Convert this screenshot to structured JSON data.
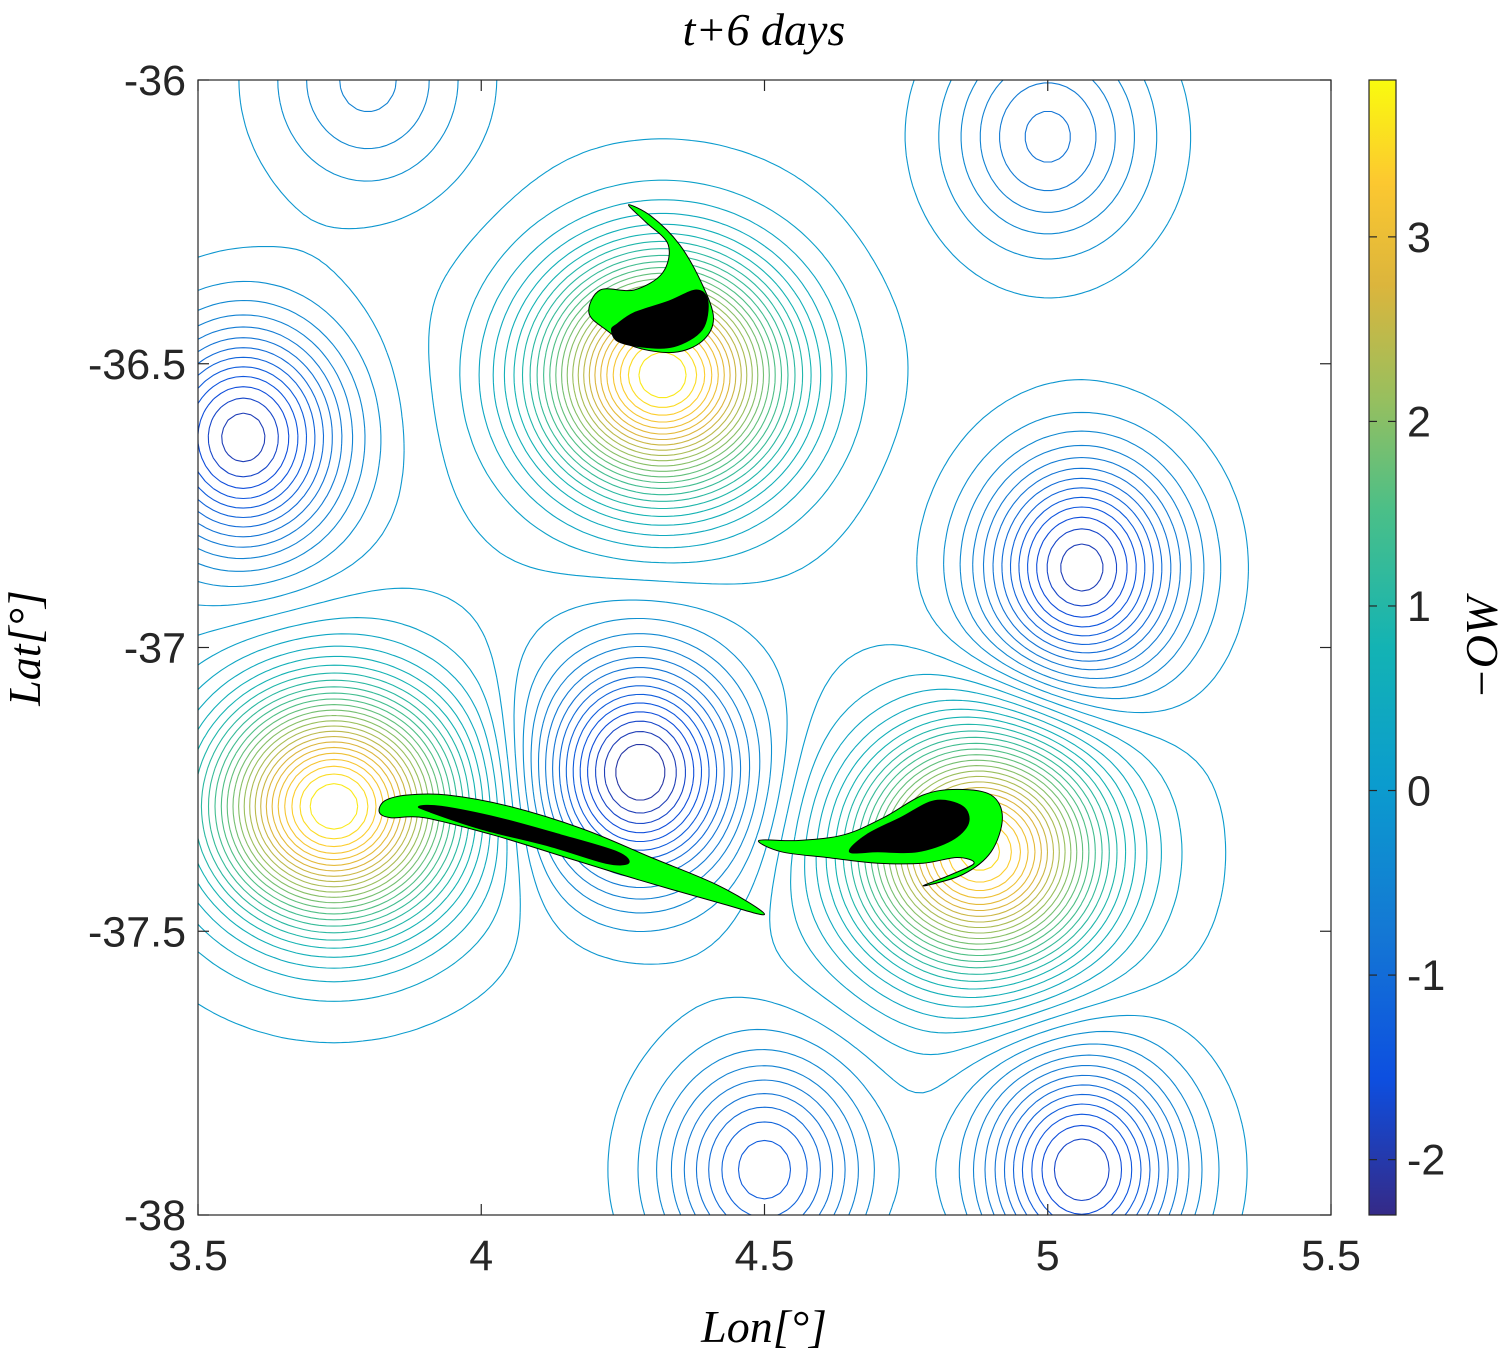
{
  "chart_data": {
    "type": "contour",
    "title": "t+6 days",
    "xlabel": "Lon[°]",
    "ylabel": "Lat[°]",
    "xlim": [
      3.5,
      5.5
    ],
    "ylim": [
      -38,
      -36
    ],
    "xticks": [
      3.5,
      4,
      4.5,
      5,
      5.5
    ],
    "xtick_labels": [
      "3.5",
      "4",
      "4.5",
      "5",
      "5.5"
    ],
    "yticks": [
      -38,
      -37.5,
      -37,
      -36.5,
      -36
    ],
    "ytick_labels": [
      "-38",
      "-37.5",
      "-37",
      "-36.5",
      "-36"
    ],
    "colorbar": {
      "label": "−OW",
      "range": [
        -2.3,
        3.85
      ],
      "ticks": [
        -2,
        -1,
        0,
        1,
        2,
        3
      ],
      "tick_labels": [
        "-2",
        "-1",
        "0",
        "1",
        "2",
        "3"
      ],
      "colormap": "parula"
    },
    "field_centers": [
      {
        "lon": 4.32,
        "lat": -36.52,
        "value": 3.8
      },
      {
        "lon": 3.74,
        "lat": -37.28,
        "value": 3.8
      },
      {
        "lon": 4.88,
        "lat": -37.36,
        "value": 3.6
      },
      {
        "lon": 4.28,
        "lat": -37.22,
        "value": -2.2
      },
      {
        "lon": 5.06,
        "lat": -36.86,
        "value": -2.0
      },
      {
        "lon": 3.58,
        "lat": -36.63,
        "value": -2.0
      },
      {
        "lon": 4.5,
        "lat": -37.92,
        "value": -1.4
      },
      {
        "lon": 5.06,
        "lat": -37.92,
        "value": -1.9
      },
      {
        "lon": 5.0,
        "lat": -36.1,
        "value": -0.9
      },
      {
        "lon": 3.8,
        "lat": -36.0,
        "value": -0.6
      }
    ],
    "tracers": [
      {
        "name": "north",
        "outer": [
          [
            4.26,
            -36.22
          ],
          [
            4.3,
            -36.24
          ],
          [
            4.35,
            -36.29
          ],
          [
            4.39,
            -36.36
          ],
          [
            4.41,
            -36.42
          ],
          [
            4.39,
            -36.46
          ],
          [
            4.34,
            -36.48
          ],
          [
            4.27,
            -36.47
          ],
          [
            4.22,
            -36.44
          ],
          [
            4.19,
            -36.41
          ],
          [
            4.21,
            -36.37
          ],
          [
            4.27,
            -36.37
          ],
          [
            4.32,
            -36.34
          ],
          [
            4.33,
            -36.29
          ],
          [
            4.29,
            -36.25
          ]
        ],
        "core": [
          [
            4.24,
            -36.43
          ],
          [
            4.27,
            -36.41
          ],
          [
            4.33,
            -36.39
          ],
          [
            4.38,
            -36.37
          ],
          [
            4.4,
            -36.39
          ],
          [
            4.39,
            -36.44
          ],
          [
            4.34,
            -36.47
          ],
          [
            4.28,
            -36.47
          ],
          [
            4.24,
            -36.46
          ],
          [
            4.23,
            -36.44
          ]
        ]
      },
      {
        "name": "west",
        "outer": [
          [
            3.83,
            -37.27
          ],
          [
            3.87,
            -37.26
          ],
          [
            3.94,
            -37.26
          ],
          [
            4.05,
            -37.28
          ],
          [
            4.18,
            -37.32
          ],
          [
            4.3,
            -37.37
          ],
          [
            4.42,
            -37.42
          ],
          [
            4.5,
            -37.47
          ],
          [
            4.42,
            -37.45
          ],
          [
            4.28,
            -37.41
          ],
          [
            4.15,
            -37.37
          ],
          [
            4.02,
            -37.33
          ],
          [
            3.9,
            -37.3
          ],
          [
            3.84,
            -37.3
          ],
          [
            3.82,
            -37.29
          ]
        ],
        "core": [
          [
            3.89,
            -37.28
          ],
          [
            3.93,
            -37.28
          ],
          [
            4.03,
            -37.3
          ],
          [
            4.14,
            -37.33
          ],
          [
            4.24,
            -37.36
          ],
          [
            4.26,
            -37.38
          ],
          [
            4.22,
            -37.38
          ],
          [
            4.12,
            -37.35
          ],
          [
            4.0,
            -37.32
          ],
          [
            3.91,
            -37.29
          ]
        ]
      },
      {
        "name": "east",
        "outer": [
          [
            4.49,
            -37.34
          ],
          [
            4.56,
            -37.34
          ],
          [
            4.64,
            -37.33
          ],
          [
            4.71,
            -37.3
          ],
          [
            4.78,
            -37.26
          ],
          [
            4.84,
            -37.25
          ],
          [
            4.9,
            -37.26
          ],
          [
            4.92,
            -37.3
          ],
          [
            4.9,
            -37.36
          ],
          [
            4.85,
            -37.4
          ],
          [
            4.78,
            -37.42
          ],
          [
            4.83,
            -37.4
          ],
          [
            4.87,
            -37.38
          ],
          [
            4.84,
            -37.37
          ],
          [
            4.78,
            -37.38
          ],
          [
            4.7,
            -37.38
          ],
          [
            4.61,
            -37.37
          ],
          [
            4.53,
            -37.36
          ]
        ],
        "core": [
          [
            4.65,
            -37.36
          ],
          [
            4.68,
            -37.33
          ],
          [
            4.74,
            -37.3
          ],
          [
            4.8,
            -37.27
          ],
          [
            4.85,
            -37.28
          ],
          [
            4.86,
            -37.31
          ],
          [
            4.83,
            -37.34
          ],
          [
            4.77,
            -37.36
          ],
          [
            4.7,
            -37.36
          ]
        ]
      }
    ]
  }
}
